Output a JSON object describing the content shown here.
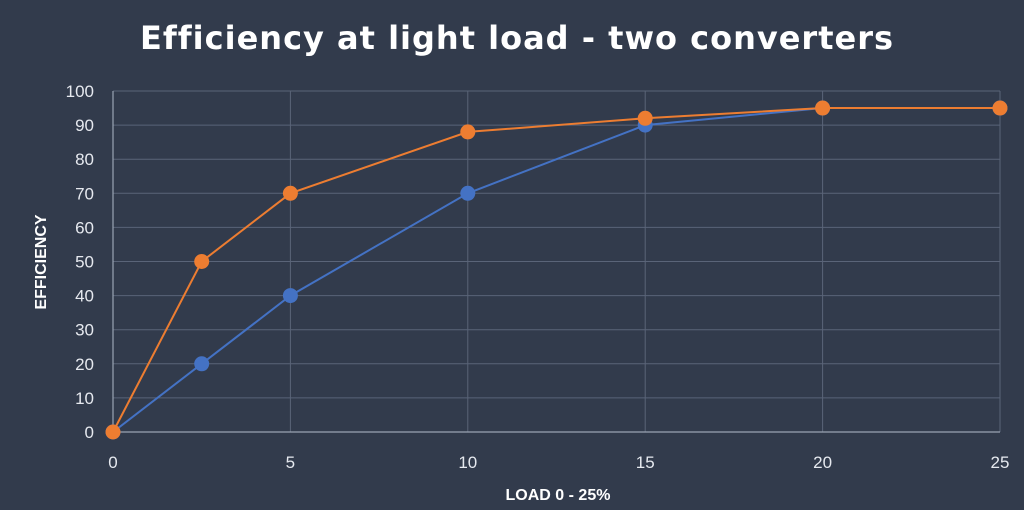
{
  "chart_data": {
    "type": "line",
    "title": "Efficiency at light load - two converters",
    "xlabel": "LOAD 0 - 25%",
    "ylabel": "EFFICIENCY",
    "xlim": [
      0,
      25
    ],
    "ylim": [
      0,
      100
    ],
    "x_ticks": [
      0,
      5,
      10,
      15,
      20,
      25
    ],
    "y_ticks": [
      0,
      10,
      20,
      30,
      40,
      50,
      60,
      70,
      80,
      90,
      100
    ],
    "grid": true,
    "legend": "none",
    "series": [
      {
        "color": "#4472c4",
        "x": [
          0,
          2.5,
          5,
          10,
          15,
          20,
          25
        ],
        "y": [
          0,
          20,
          40,
          70,
          90,
          95,
          95
        ]
      },
      {
        "color": "#ed7d31",
        "x": [
          0,
          2.5,
          5,
          10,
          15,
          20,
          25
        ],
        "y": [
          0,
          50,
          70,
          88,
          92,
          95,
          95
        ]
      }
    ]
  }
}
